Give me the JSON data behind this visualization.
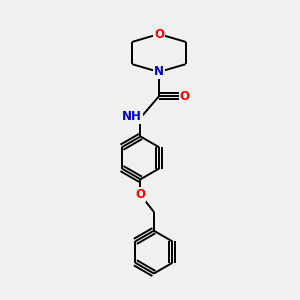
{
  "background_color": "#f0f0f0",
  "bond_color": "#000000",
  "atom_colors": {
    "O": "#ff0000",
    "N": "#0000cc",
    "C": "#000000"
  },
  "font_size_atom": 8.5,
  "line_width": 1.4
}
